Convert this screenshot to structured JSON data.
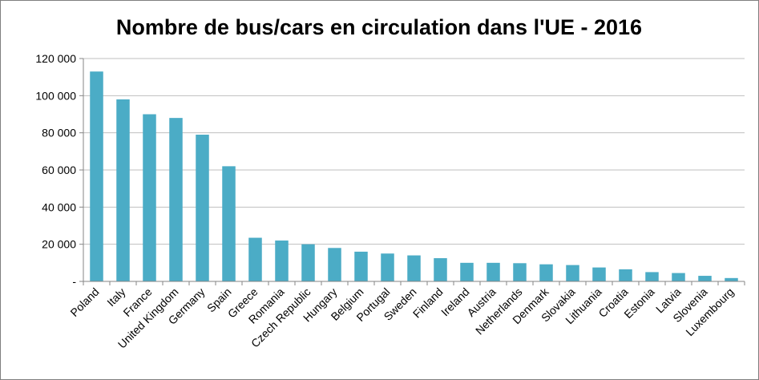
{
  "chart_data": {
    "type": "bar",
    "title": "Nombre de bus/cars en circulation dans l'UE - 2016",
    "xlabel": "",
    "ylabel": "",
    "categories": [
      "Poland",
      "Italy",
      "France",
      "United Kingdom",
      "Germany",
      "Spain",
      "Greece",
      "Romania",
      "Czech Republic",
      "Hungary",
      "Belgium",
      "Portugal",
      "Sweden",
      "Finland",
      "Ireland",
      "Austria",
      "Netherlands",
      "Denmark",
      "Slovakia",
      "Lithuania",
      "Croatia",
      "Estonia",
      "Latvia",
      "Slovenia",
      "Luxembourg"
    ],
    "values": [
      113000,
      98000,
      90000,
      88000,
      79000,
      62000,
      23500,
      22000,
      20000,
      18000,
      16000,
      15000,
      14000,
      12500,
      10000,
      10000,
      9800,
      9200,
      8800,
      7500,
      6500,
      5000,
      4500,
      3000,
      1800
    ],
    "ylim": [
      0,
      120000
    ],
    "y_ticks": [
      0,
      20000,
      40000,
      60000,
      80000,
      100000,
      120000
    ],
    "y_tick_labels": [
      "-",
      "20 000",
      "40 000",
      "60 000",
      "80 000",
      "100 000",
      "120 000"
    ],
    "grid": true,
    "legend": "none",
    "bar_color": "#4bacc6",
    "grid_color": "#bfbfbf"
  }
}
